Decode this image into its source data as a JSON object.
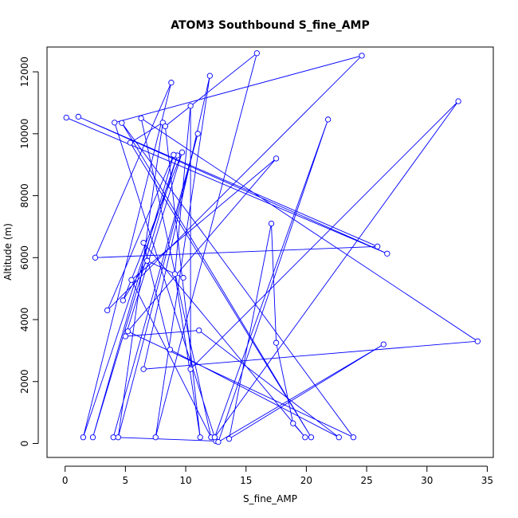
{
  "chart_data": {
    "type": "line",
    "title": "ATOM3 Southbound S_fine_AMP",
    "xlabel": "S_fine_AMP",
    "ylabel": "Altitude (m)",
    "xlim": [
      -1.5,
      35.5
    ],
    "ylim": [
      -450,
      12800
    ],
    "x_ticks": [
      0,
      5,
      10,
      15,
      20,
      25,
      30,
      35
    ],
    "y_ticks": [
      0,
      2000,
      4000,
      6000,
      8000,
      10000,
      12000
    ],
    "grid": false,
    "series_color": "#0000ff",
    "series": [
      {
        "markers": "open-circle",
        "x": [
          0.1,
          26.7,
          1.1,
          25.9,
          2.5,
          8.8,
          1.5,
          9.3,
          2.3,
          9.0,
          3.5,
          24.6,
          4.1,
          12.5,
          4.0,
          11.0,
          4.4,
          8.1,
          5.4,
          20.4,
          4.7,
          23.9,
          5.2,
          17.5,
          5.5,
          12.1,
          6.3,
          34.2,
          6.5,
          12.0,
          7.5,
          15.9,
          8.3,
          11.2,
          9.1,
          10.4,
          10.4,
          32.6,
          12.4,
          21.8,
          12.7,
          26.4,
          13.6,
          17.1,
          17.5,
          18.9,
          19.9,
          6.5,
          8.7,
          22.7,
          11.1,
          5.0,
          9.7,
          4.8,
          6.8,
          9.8
        ],
        "y": [
          10520,
          6130,
          10550,
          6360,
          6000,
          11650,
          200,
          9300,
          200,
          9320,
          4300,
          12520,
          10360,
          80,
          200,
          10000,
          200,
          10360,
          9710,
          200,
          10350,
          200,
          3620,
          9200,
          5280,
          200,
          10500,
          3300,
          2400,
          11870,
          200,
          12600,
          10240,
          200,
          5470,
          10900,
          2400,
          11050,
          200,
          10460,
          50,
          3200,
          150,
          7100,
          3250,
          650,
          200,
          6480,
          3030,
          200,
          3650,
          3460,
          9400,
          4620,
          5900,
          5350
        ]
      }
    ]
  }
}
